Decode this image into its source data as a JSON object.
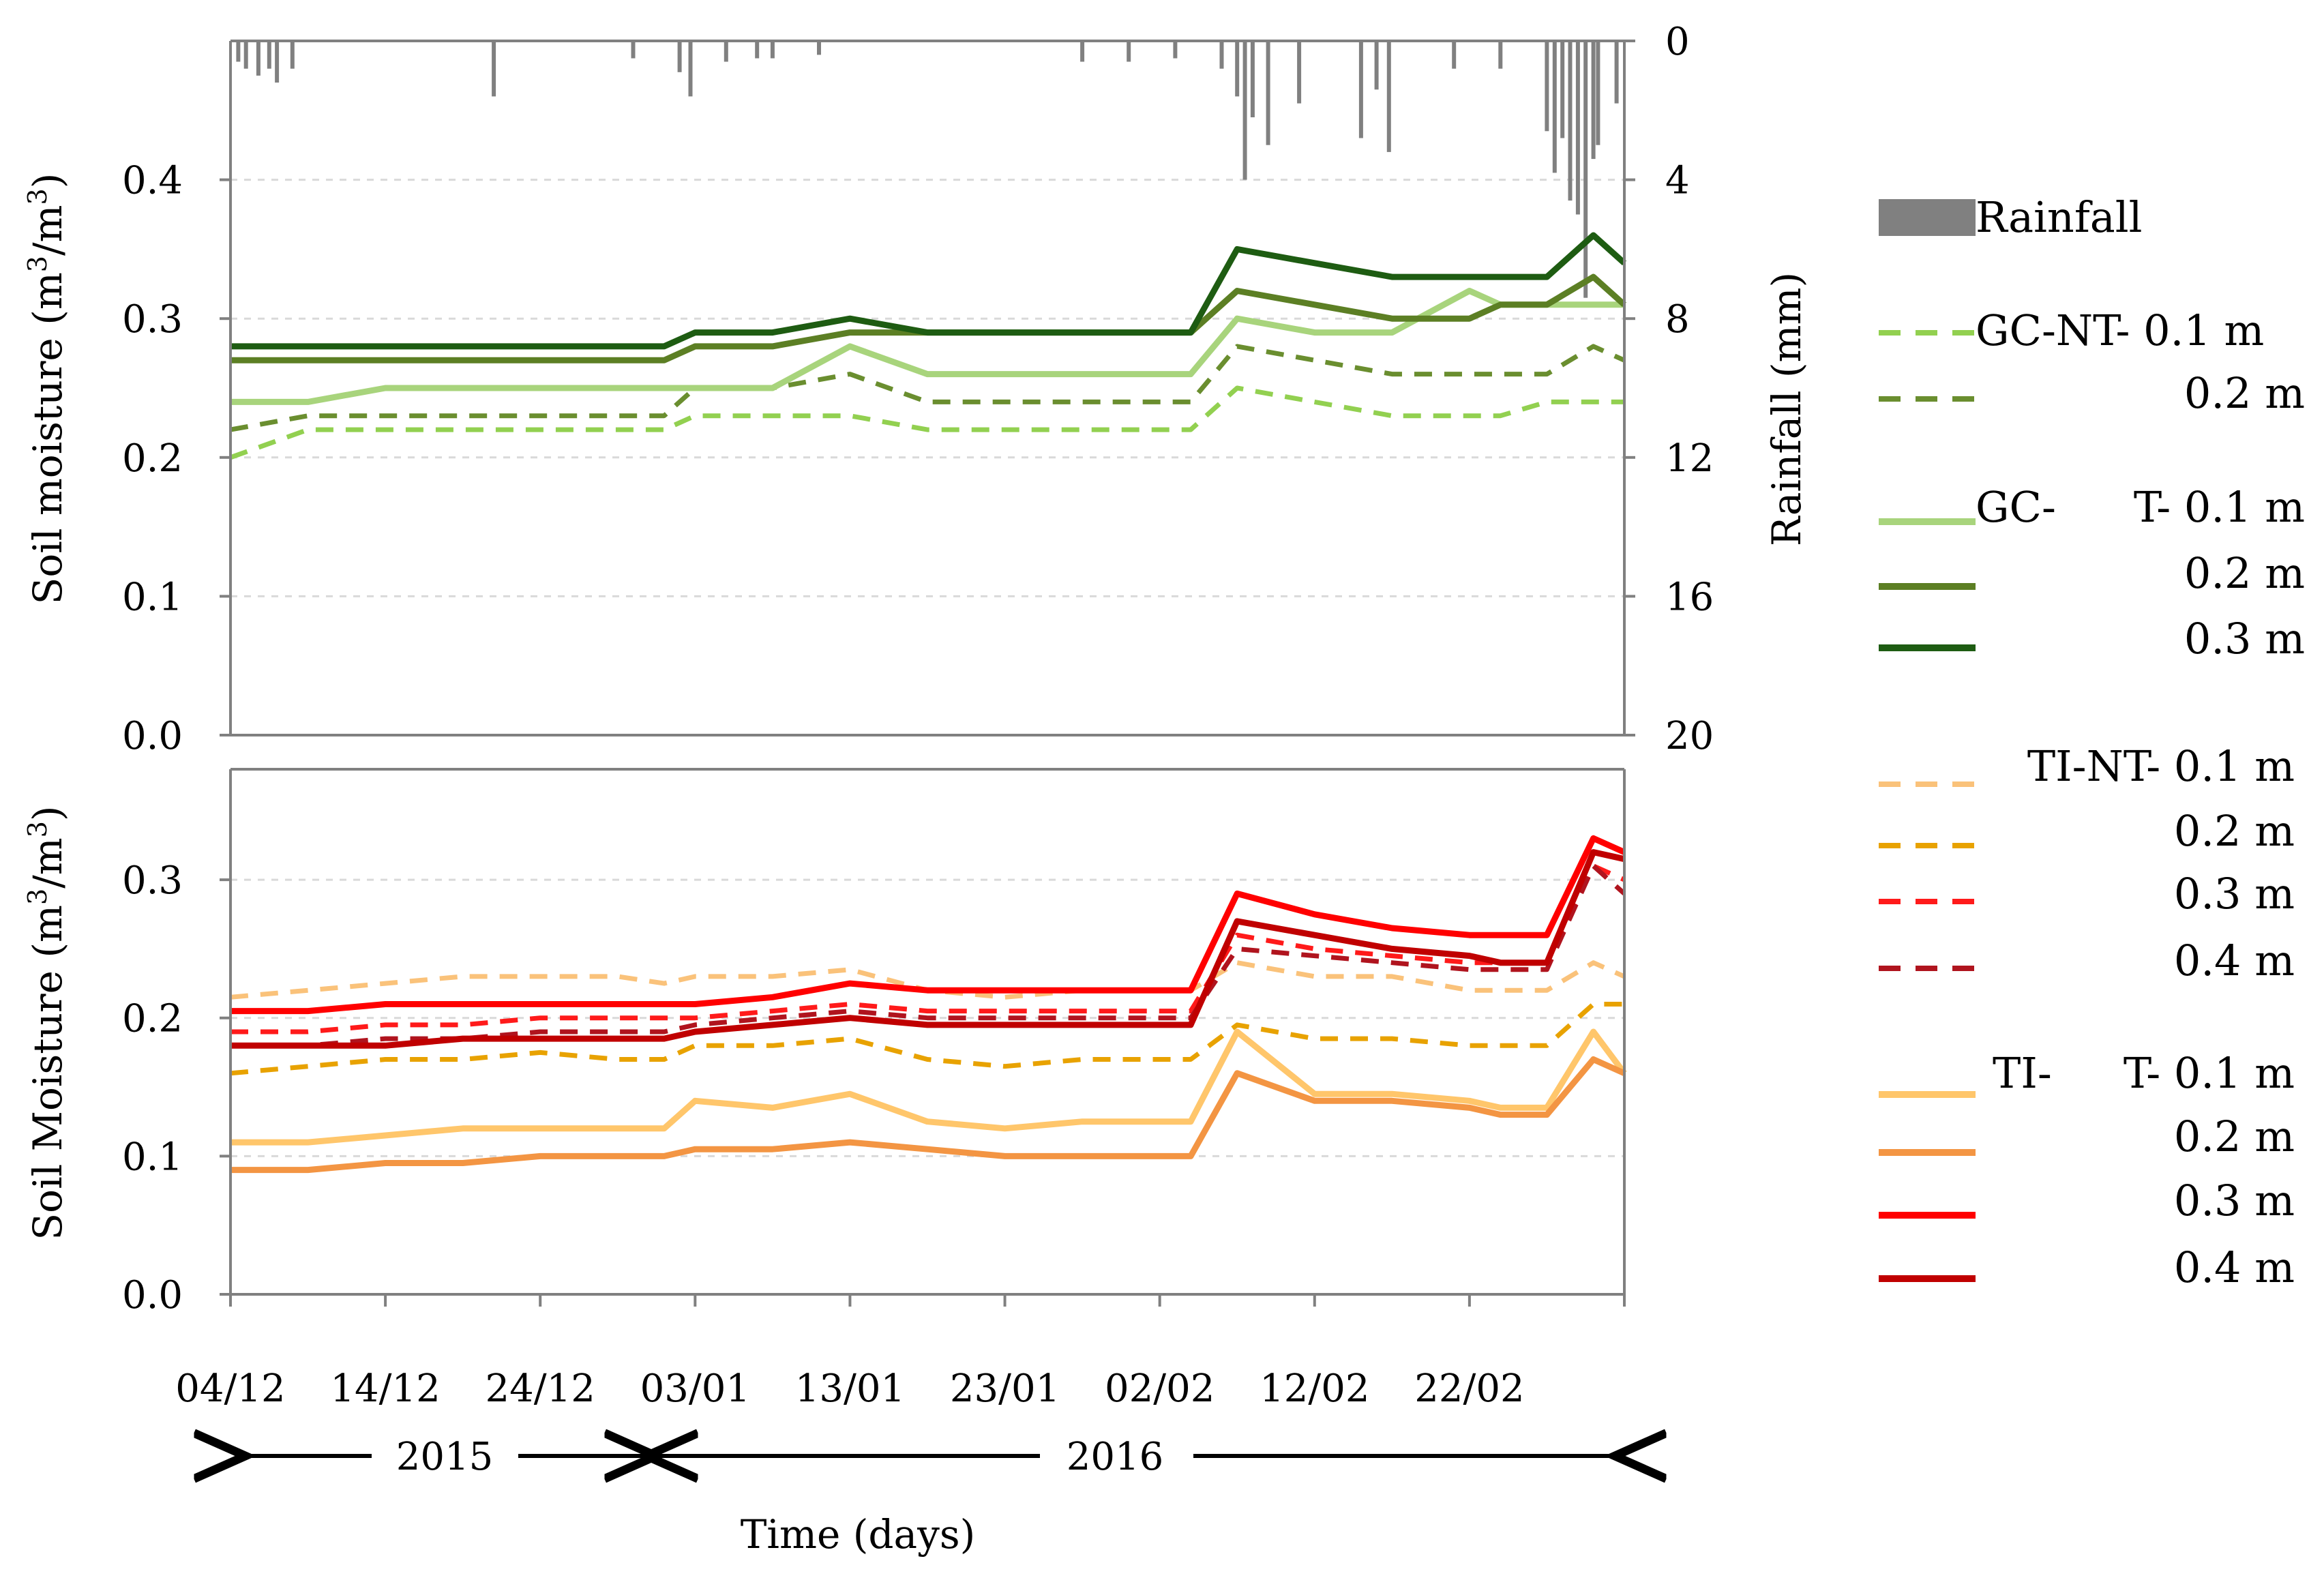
{
  "chart_data": [
    {
      "type": "line",
      "panel": "top",
      "ylabel": "Soil moisture (m3/m3)",
      "ylabel_main": "Soil moisture (m",
      "ylabel_sup1": "3",
      "ylabel_mid": "/m",
      "ylabel_sup2": "3",
      "ylabel_end": ")",
      "ylim": [
        0,
        0.5
      ],
      "yticks": [
        "0.0",
        "0.1",
        "0.2",
        "0.3",
        "0.4"
      ],
      "y2label": "Rainfall (mm)",
      "y2lim": [
        0,
        20
      ],
      "y2ticks": [
        "0",
        "4",
        "8",
        "12",
        "16",
        "20"
      ],
      "x_days": [
        0,
        5,
        10,
        15,
        20,
        25,
        28,
        30,
        35,
        40,
        45,
        50,
        55,
        60,
        62,
        65,
        70,
        75,
        80,
        82,
        85,
        88,
        90
      ],
      "series": [
        {
          "name": "GC-NT- 0.1 m",
          "color": "#92D050",
          "dash": true,
          "values": [
            0.2,
            0.22,
            0.22,
            0.22,
            0.22,
            0.22,
            0.22,
            0.23,
            0.23,
            0.23,
            0.22,
            0.22,
            0.22,
            0.22,
            0.22,
            0.25,
            0.24,
            0.23,
            0.23,
            0.23,
            0.24,
            0.24,
            0.24
          ]
        },
        {
          "name": "GC-NT- 0.2 m",
          "color": "#6A8E2F",
          "dash": true,
          "values": [
            0.22,
            0.23,
            0.23,
            0.23,
            0.23,
            0.23,
            0.23,
            0.25,
            0.25,
            0.26,
            0.24,
            0.24,
            0.24,
            0.24,
            0.24,
            0.28,
            0.27,
            0.26,
            0.26,
            0.26,
            0.26,
            0.28,
            0.27
          ]
        },
        {
          "name": "GC-T- 0.1 m",
          "color": "#A8D47C",
          "dash": false,
          "values": [
            0.24,
            0.24,
            0.25,
            0.25,
            0.25,
            0.25,
            0.25,
            0.25,
            0.25,
            0.28,
            0.26,
            0.26,
            0.26,
            0.26,
            0.26,
            0.3,
            0.29,
            0.29,
            0.32,
            0.31,
            0.31,
            0.31,
            0.31
          ]
        },
        {
          "name": "GC-T- 0.2 m",
          "color": "#5C7F24",
          "dash": false,
          "values": [
            0.27,
            0.27,
            0.27,
            0.27,
            0.27,
            0.27,
            0.27,
            0.28,
            0.28,
            0.29,
            0.29,
            0.29,
            0.29,
            0.29,
            0.29,
            0.32,
            0.31,
            0.3,
            0.3,
            0.31,
            0.31,
            0.33,
            0.31
          ]
        },
        {
          "name": "GC-T- 0.3 m",
          "color": "#1E5C12",
          "dash": false,
          "values": [
            0.28,
            0.28,
            0.28,
            0.28,
            0.28,
            0.28,
            0.28,
            0.29,
            0.29,
            0.3,
            0.29,
            0.29,
            0.29,
            0.29,
            0.29,
            0.35,
            0.34,
            0.33,
            0.33,
            0.33,
            0.33,
            0.36,
            0.34
          ]
        }
      ],
      "rainfall": {
        "name": "Rainfall",
        "color": "#808080",
        "days": [
          0.5,
          1,
          1.8,
          2.5,
          3,
          4,
          17,
          26,
          29,
          29.7,
          32,
          34,
          35,
          38,
          55,
          58,
          61,
          64,
          65,
          65.5,
          66,
          67,
          69,
          73,
          74,
          74.8,
          79,
          82,
          85,
          85.5,
          86,
          86.5,
          87,
          87.5,
          88,
          88.3,
          89.5
        ],
        "mm": [
          0.6,
          0.8,
          1.0,
          0.8,
          1.2,
          0.8,
          1.6,
          0.5,
          0.9,
          1.6,
          0.6,
          0.5,
          0.5,
          0.4,
          0.6,
          0.6,
          0.5,
          0.8,
          1.6,
          4.0,
          2.2,
          3.0,
          1.8,
          2.8,
          1.4,
          3.2,
          0.8,
          0.8,
          2.6,
          3.8,
          2.8,
          4.6,
          5.0,
          7.4,
          3.4,
          3.0,
          1.8
        ]
      }
    },
    {
      "type": "line",
      "panel": "bottom",
      "ylabel": "Soil Moisture (m3/m3)",
      "ylabel_main": "Soil Moisture (m",
      "ylabel_sup1": "3",
      "ylabel_mid": "/m",
      "ylabel_sup2": "3",
      "ylabel_end": ")",
      "ylim": [
        0,
        0.38
      ],
      "yticks": [
        "0.0",
        "0.1",
        "0.2",
        "0.3"
      ],
      "x_days": [
        0,
        5,
        10,
        15,
        20,
        25,
        28,
        30,
        35,
        40,
        45,
        50,
        55,
        60,
        62,
        65,
        70,
        75,
        80,
        82,
        85,
        88,
        90
      ],
      "series": [
        {
          "name": "TI-NT- 0.1 m",
          "color": "#FAC27A",
          "dash": true,
          "values": [
            0.215,
            0.22,
            0.225,
            0.23,
            0.23,
            0.23,
            0.225,
            0.23,
            0.23,
            0.235,
            0.22,
            0.215,
            0.22,
            0.22,
            0.22,
            0.24,
            0.23,
            0.23,
            0.22,
            0.22,
            0.22,
            0.24,
            0.23
          ]
        },
        {
          "name": "TI-NT- 0.2 m",
          "color": "#E8A200",
          "dash": true,
          "values": [
            0.16,
            0.165,
            0.17,
            0.17,
            0.175,
            0.17,
            0.17,
            0.18,
            0.18,
            0.185,
            0.17,
            0.165,
            0.17,
            0.17,
            0.17,
            0.195,
            0.185,
            0.185,
            0.18,
            0.18,
            0.18,
            0.21,
            0.21
          ]
        },
        {
          "name": "TI-NT- 0.3 m",
          "color": "#FF1A1A",
          "dash": true,
          "values": [
            0.19,
            0.19,
            0.195,
            0.195,
            0.2,
            0.2,
            0.2,
            0.2,
            0.205,
            0.21,
            0.205,
            0.205,
            0.205,
            0.205,
            0.205,
            0.26,
            0.25,
            0.245,
            0.24,
            0.24,
            0.24,
            0.31,
            0.3
          ]
        },
        {
          "name": "TI-NT- 0.4 m",
          "color": "#B0141E",
          "dash": true,
          "values": [
            0.18,
            0.18,
            0.185,
            0.185,
            0.19,
            0.19,
            0.19,
            0.195,
            0.2,
            0.205,
            0.2,
            0.2,
            0.2,
            0.2,
            0.2,
            0.25,
            0.245,
            0.24,
            0.235,
            0.235,
            0.235,
            0.31,
            0.29
          ]
        },
        {
          "name": "TI-T- 0.1 m",
          "color": "#FFC66B",
          "dash": false,
          "values": [
            0.11,
            0.11,
            0.115,
            0.12,
            0.12,
            0.12,
            0.12,
            0.14,
            0.135,
            0.145,
            0.125,
            0.12,
            0.125,
            0.125,
            0.125,
            0.19,
            0.145,
            0.145,
            0.14,
            0.135,
            0.135,
            0.19,
            0.16
          ]
        },
        {
          "name": "TI-T- 0.2 m",
          "color": "#F39543",
          "dash": false,
          "values": [
            0.09,
            0.09,
            0.095,
            0.095,
            0.1,
            0.1,
            0.1,
            0.105,
            0.105,
            0.11,
            0.105,
            0.1,
            0.1,
            0.1,
            0.1,
            0.16,
            0.14,
            0.14,
            0.135,
            0.13,
            0.13,
            0.17,
            0.16
          ]
        },
        {
          "name": "TI-T- 0.3 m",
          "color": "#FF0000",
          "dash": false,
          "values": [
            0.205,
            0.205,
            0.21,
            0.21,
            0.21,
            0.21,
            0.21,
            0.21,
            0.215,
            0.225,
            0.22,
            0.22,
            0.22,
            0.22,
            0.22,
            0.29,
            0.275,
            0.265,
            0.26,
            0.26,
            0.26,
            0.33,
            0.32
          ]
        },
        {
          "name": "TI-T- 0.4 m",
          "color": "#C00000",
          "dash": false,
          "values": [
            0.18,
            0.18,
            0.18,
            0.185,
            0.185,
            0.185,
            0.185,
            0.19,
            0.195,
            0.2,
            0.195,
            0.195,
            0.195,
            0.195,
            0.195,
            0.27,
            0.26,
            0.25,
            0.245,
            0.24,
            0.24,
            0.32,
            0.315
          ]
        }
      ]
    }
  ],
  "xaxis": {
    "label": "Time (days)",
    "ticks": [
      "04/12",
      "14/12",
      "24/12",
      "03/01",
      "13/01",
      "23/01",
      "02/02",
      "12/02",
      "22/02"
    ],
    "tick_days": [
      0,
      10,
      20,
      30,
      40,
      50,
      60,
      70,
      80
    ],
    "range_days": [
      0,
      90
    ],
    "year1": "2015",
    "year2": "2016"
  },
  "legend": {
    "rainfall": "Rainfall",
    "gcnt_title": "GC-NT- 0.1 m",
    "gcnt_02": "0.2 m",
    "gct_prefix": "GC-",
    "gct_title": "T- 0.1 m",
    "gct_02": "0.2 m",
    "gct_03": "0.3 m",
    "tint_title": "TI-NT- 0.1 m",
    "tint_02": "0.2 m",
    "tint_03": "0.3 m",
    "tint_04": "0.4 m",
    "tit_prefix": "TI-",
    "tit_title": "T- 0.1 m",
    "tit_02": "0.2 m",
    "tit_03": "0.3 m",
    "tit_04": "0.4 m"
  }
}
